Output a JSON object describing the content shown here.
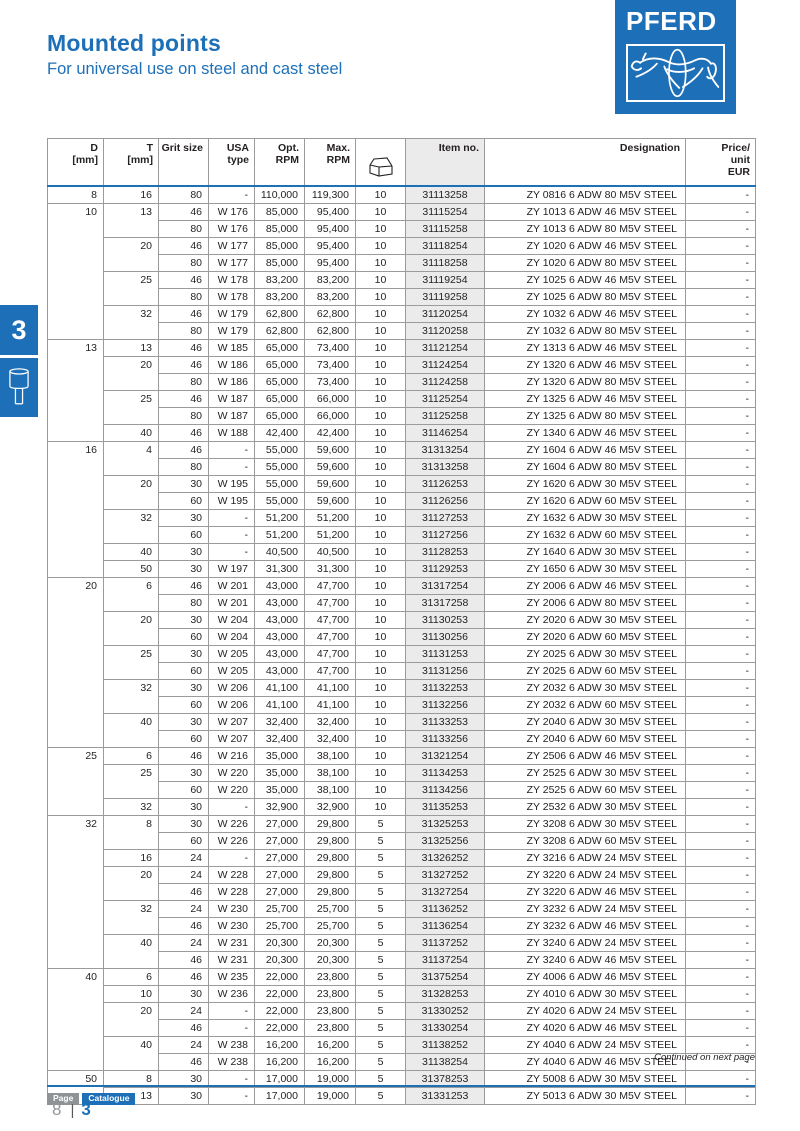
{
  "page": {
    "title": "Mounted points",
    "subtitle": "For universal use on steel and cast steel",
    "brand": "PFERD",
    "section_tab": "3",
    "continued_note": "Continued on next page"
  },
  "footer": {
    "page_label": "Page",
    "catalogue_label": "Catalogue",
    "page_number": "8",
    "separator": "|",
    "catalogue_number": "3"
  },
  "colors": {
    "brand_blue": "#1d70b8",
    "item_column_bg": "#ebebeb",
    "badge_gray": "#8f9396",
    "table_border": "#9b9b9b"
  },
  "table": {
    "headers": [
      "D\n[mm]",
      "T\n[mm]",
      "Grit size",
      "USA\ntype",
      "Opt.\nRPM",
      "Max.\nRPM",
      "",
      "Item no.",
      "Designation",
      "Price/\nunit\nEUR"
    ],
    "qty_header_icon": "package-icon",
    "rows": [
      [
        "8",
        "16",
        "80",
        "-",
        "110,000",
        "119,300",
        "10",
        "31113258",
        "ZY 0816 6 ADW 80 M5V STEEL",
        "-"
      ],
      [
        "10",
        "13",
        "46",
        "W 176",
        "85,000",
        "95,400",
        "10",
        "31115254",
        "ZY 1013 6 ADW 46 M5V STEEL",
        "-"
      ],
      [
        "",
        "",
        "80",
        "W 176",
        "85,000",
        "95,400",
        "10",
        "31115258",
        "ZY 1013 6 ADW 80 M5V STEEL",
        "-"
      ],
      [
        "",
        "20",
        "46",
        "W 177",
        "85,000",
        "95,400",
        "10",
        "31118254",
        "ZY 1020 6 ADW 46 M5V STEEL",
        "-"
      ],
      [
        "",
        "",
        "80",
        "W 177",
        "85,000",
        "95,400",
        "10",
        "31118258",
        "ZY 1020 6 ADW 80 M5V STEEL",
        "-"
      ],
      [
        "",
        "25",
        "46",
        "W 178",
        "83,200",
        "83,200",
        "10",
        "31119254",
        "ZY 1025 6 ADW 46 M5V STEEL",
        "-"
      ],
      [
        "",
        "",
        "80",
        "W 178",
        "83,200",
        "83,200",
        "10",
        "31119258",
        "ZY 1025 6 ADW 80 M5V STEEL",
        "-"
      ],
      [
        "",
        "32",
        "46",
        "W 179",
        "62,800",
        "62,800",
        "10",
        "31120254",
        "ZY 1032 6 ADW 46 M5V STEEL",
        "-"
      ],
      [
        "",
        "",
        "80",
        "W 179",
        "62,800",
        "62,800",
        "10",
        "31120258",
        "ZY 1032 6 ADW 80 M5V STEEL",
        "-"
      ],
      [
        "13",
        "13",
        "46",
        "W 185",
        "65,000",
        "73,400",
        "10",
        "31121254",
        "ZY 1313 6 ADW 46 M5V STEEL",
        "-"
      ],
      [
        "",
        "20",
        "46",
        "W 186",
        "65,000",
        "73,400",
        "10",
        "31124254",
        "ZY 1320 6 ADW 46 M5V STEEL",
        "-"
      ],
      [
        "",
        "",
        "80",
        "W 186",
        "65,000",
        "73,400",
        "10",
        "31124258",
        "ZY 1320 6 ADW 80 M5V STEEL",
        "-"
      ],
      [
        "",
        "25",
        "46",
        "W 187",
        "65,000",
        "66,000",
        "10",
        "31125254",
        "ZY 1325 6 ADW 46 M5V STEEL",
        "-"
      ],
      [
        "",
        "",
        "80",
        "W 187",
        "65,000",
        "66,000",
        "10",
        "31125258",
        "ZY 1325 6 ADW 80 M5V STEEL",
        "-"
      ],
      [
        "",
        "40",
        "46",
        "W 188",
        "42,400",
        "42,400",
        "10",
        "31146254",
        "ZY 1340 6 ADW 46 M5V STEEL",
        "-"
      ],
      [
        "16",
        "4",
        "46",
        "-",
        "55,000",
        "59,600",
        "10",
        "31313254",
        "ZY 1604 6 ADW 46 M5V STEEL",
        "-"
      ],
      [
        "",
        "",
        "80",
        "-",
        "55,000",
        "59,600",
        "10",
        "31313258",
        "ZY 1604 6 ADW 80 M5V STEEL",
        "-"
      ],
      [
        "",
        "20",
        "30",
        "W 195",
        "55,000",
        "59,600",
        "10",
        "31126253",
        "ZY 1620 6 ADW 30 M5V STEEL",
        "-"
      ],
      [
        "",
        "",
        "60",
        "W 195",
        "55,000",
        "59,600",
        "10",
        "31126256",
        "ZY 1620 6 ADW 60 M5V STEEL",
        "-"
      ],
      [
        "",
        "32",
        "30",
        "-",
        "51,200",
        "51,200",
        "10",
        "31127253",
        "ZY 1632 6 ADW 30 M5V STEEL",
        "-"
      ],
      [
        "",
        "",
        "60",
        "-",
        "51,200",
        "51,200",
        "10",
        "31127256",
        "ZY 1632 6 ADW 60 M5V STEEL",
        "-"
      ],
      [
        "",
        "40",
        "30",
        "-",
        "40,500",
        "40,500",
        "10",
        "31128253",
        "ZY 1640 6 ADW 30 M5V STEEL",
        "-"
      ],
      [
        "",
        "50",
        "30",
        "W 197",
        "31,300",
        "31,300",
        "10",
        "31129253",
        "ZY 1650 6 ADW 30 M5V STEEL",
        "-"
      ],
      [
        "20",
        "6",
        "46",
        "W 201",
        "43,000",
        "47,700",
        "10",
        "31317254",
        "ZY 2006 6 ADW 46 M5V STEEL",
        "-"
      ],
      [
        "",
        "",
        "80",
        "W 201",
        "43,000",
        "47,700",
        "10",
        "31317258",
        "ZY 2006 6 ADW 80 M5V STEEL",
        "-"
      ],
      [
        "",
        "20",
        "30",
        "W 204",
        "43,000",
        "47,700",
        "10",
        "31130253",
        "ZY 2020 6 ADW 30 M5V STEEL",
        "-"
      ],
      [
        "",
        "",
        "60",
        "W 204",
        "43,000",
        "47,700",
        "10",
        "31130256",
        "ZY 2020 6 ADW 60 M5V STEEL",
        "-"
      ],
      [
        "",
        "25",
        "30",
        "W 205",
        "43,000",
        "47,700",
        "10",
        "31131253",
        "ZY 2025 6 ADW 30 M5V STEEL",
        "-"
      ],
      [
        "",
        "",
        "60",
        "W 205",
        "43,000",
        "47,700",
        "10",
        "31131256",
        "ZY 2025 6 ADW 60 M5V STEEL",
        "-"
      ],
      [
        "",
        "32",
        "30",
        "W 206",
        "41,100",
        "41,100",
        "10",
        "31132253",
        "ZY 2032 6 ADW 30 M5V STEEL",
        "-"
      ],
      [
        "",
        "",
        "60",
        "W 206",
        "41,100",
        "41,100",
        "10",
        "31132256",
        "ZY 2032 6 ADW 60 M5V STEEL",
        "-"
      ],
      [
        "",
        "40",
        "30",
        "W 207",
        "32,400",
        "32,400",
        "10",
        "31133253",
        "ZY 2040 6 ADW 30 M5V STEEL",
        "-"
      ],
      [
        "",
        "",
        "60",
        "W 207",
        "32,400",
        "32,400",
        "10",
        "31133256",
        "ZY 2040 6 ADW 60 M5V STEEL",
        "-"
      ],
      [
        "25",
        "6",
        "46",
        "W 216",
        "35,000",
        "38,100",
        "10",
        "31321254",
        "ZY 2506 6 ADW 46 M5V STEEL",
        "-"
      ],
      [
        "",
        "25",
        "30",
        "W 220",
        "35,000",
        "38,100",
        "10",
        "31134253",
        "ZY 2525 6 ADW 30 M5V STEEL",
        "-"
      ],
      [
        "",
        "",
        "60",
        "W 220",
        "35,000",
        "38,100",
        "10",
        "31134256",
        "ZY 2525 6 ADW 60 M5V STEEL",
        "-"
      ],
      [
        "",
        "32",
        "30",
        "-",
        "32,900",
        "32,900",
        "10",
        "31135253",
        "ZY 2532 6 ADW 30 M5V STEEL",
        "-"
      ],
      [
        "32",
        "8",
        "30",
        "W 226",
        "27,000",
        "29,800",
        "5",
        "31325253",
        "ZY 3208 6 ADW 30 M5V STEEL",
        "-"
      ],
      [
        "",
        "",
        "60",
        "W 226",
        "27,000",
        "29,800",
        "5",
        "31325256",
        "ZY 3208 6 ADW 60 M5V STEEL",
        "-"
      ],
      [
        "",
        "16",
        "24",
        "-",
        "27,000",
        "29,800",
        "5",
        "31326252",
        "ZY 3216 6 ADW 24 M5V STEEL",
        "-"
      ],
      [
        "",
        "20",
        "24",
        "W 228",
        "27,000",
        "29,800",
        "5",
        "31327252",
        "ZY 3220 6 ADW 24 M5V STEEL",
        "-"
      ],
      [
        "",
        "",
        "46",
        "W 228",
        "27,000",
        "29,800",
        "5",
        "31327254",
        "ZY 3220 6 ADW 46 M5V STEEL",
        "-"
      ],
      [
        "",
        "32",
        "24",
        "W 230",
        "25,700",
        "25,700",
        "5",
        "31136252",
        "ZY 3232 6 ADW 24 M5V STEEL",
        "-"
      ],
      [
        "",
        "",
        "46",
        "W 230",
        "25,700",
        "25,700",
        "5",
        "31136254",
        "ZY 3232 6 ADW 46 M5V STEEL",
        "-"
      ],
      [
        "",
        "40",
        "24",
        "W 231",
        "20,300",
        "20,300",
        "5",
        "31137252",
        "ZY 3240 6 ADW 24 M5V STEEL",
        "-"
      ],
      [
        "",
        "",
        "46",
        "W 231",
        "20,300",
        "20,300",
        "5",
        "31137254",
        "ZY 3240 6 ADW 46 M5V STEEL",
        "-"
      ],
      [
        "40",
        "6",
        "46",
        "W 235",
        "22,000",
        "23,800",
        "5",
        "31375254",
        "ZY 4006 6 ADW 46 M5V STEEL",
        "-"
      ],
      [
        "",
        "10",
        "30",
        "W 236",
        "22,000",
        "23,800",
        "5",
        "31328253",
        "ZY 4010 6 ADW 30 M5V STEEL",
        "-"
      ],
      [
        "",
        "20",
        "24",
        "-",
        "22,000",
        "23,800",
        "5",
        "31330252",
        "ZY 4020 6 ADW 24 M5V STEEL",
        "-"
      ],
      [
        "",
        "",
        "46",
        "-",
        "22,000",
        "23,800",
        "5",
        "31330254",
        "ZY 4020 6 ADW 46 M5V STEEL",
        "-"
      ],
      [
        "",
        "40",
        "24",
        "W 238",
        "16,200",
        "16,200",
        "5",
        "31138252",
        "ZY 4040 6 ADW 24 M5V STEEL",
        "-"
      ],
      [
        "",
        "",
        "46",
        "W 238",
        "16,200",
        "16,200",
        "5",
        "31138254",
        "ZY 4040 6 ADW 46 M5V STEEL",
        "-"
      ],
      [
        "50",
        "8",
        "30",
        "-",
        "17,000",
        "19,000",
        "5",
        "31378253",
        "ZY 5008 6 ADW 30 M5V STEEL",
        "-"
      ],
      [
        "",
        "13",
        "30",
        "-",
        "17,000",
        "19,000",
        "5",
        "31331253",
        "ZY 5013 6 ADW 30 M5V STEEL",
        "-"
      ]
    ]
  }
}
